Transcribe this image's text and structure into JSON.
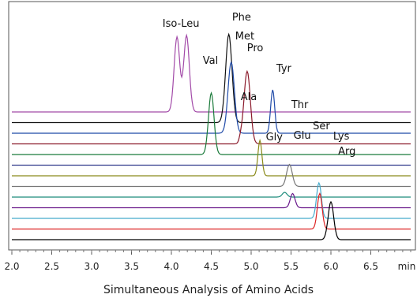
{
  "chart_data": {
    "type": "line",
    "title": "",
    "xlabel": "Simultaneous Analysis of Amino Acids",
    "x_unit": "min",
    "xlim": [
      2.0,
      7.0
    ],
    "x_ticks": [
      "2.0",
      "2.5",
      "3.0",
      "3.5",
      "4.0",
      "4.5",
      "5.0",
      "5.5",
      "6.0",
      "6.5"
    ],
    "ylabel": "",
    "grid": false,
    "legend": "none",
    "series": [
      {
        "color": "#a24aa8",
        "peaks": [
          {
            "label": "Iso-Leu",
            "rt": 4.07,
            "h": 0.95,
            "w": 0.035
          },
          {
            "rt": 4.19,
            "h": 0.97,
            "w": 0.035
          }
        ]
      },
      {
        "color": "#111111",
        "peaks": [
          {
            "label": "Phe",
            "rt": 4.72,
            "h": 1.12,
            "w": 0.04
          }
        ]
      },
      {
        "color": "#1f4aa8",
        "peaks": [
          {
            "label": "Met",
            "rt": 4.75,
            "h": 0.9,
            "w": 0.04
          },
          {
            "label": "Tyr",
            "rt": 5.27,
            "h": 0.55,
            "w": 0.025
          }
        ]
      },
      {
        "color": "#8b1a2b",
        "peaks": [
          {
            "label": "Pro",
            "rt": 4.95,
            "h": 0.92,
            "w": 0.04
          },
          {
            "label": "Ala",
            "rt": 4.87,
            "h": 0.06,
            "w": 0.02
          }
        ]
      },
      {
        "color": "#1a7a3a",
        "peaks": [
          {
            "label": "Val",
            "rt": 4.5,
            "h": 0.78,
            "w": 0.035
          }
        ]
      },
      {
        "color": "#303a8c",
        "peaks": []
      },
      {
        "color": "#8a8a1a",
        "peaks": [
          {
            "label": "Ala",
            "rt": 5.11,
            "h": 0.45,
            "w": 0.025
          }
        ]
      },
      {
        "color": "#777777",
        "peaks": [
          {
            "label": "Thr",
            "rt": 5.48,
            "h": 0.28,
            "w": 0.035
          }
        ]
      },
      {
        "color": "#1a8a7a",
        "peaks": [
          {
            "label": "Gly",
            "rt": 5.42,
            "h": 0.06,
            "w": 0.03
          }
        ]
      },
      {
        "color": "#6a1a8c",
        "peaks": [
          {
            "label": "Glu",
            "rt": 5.52,
            "h": 0.18,
            "w": 0.03
          }
        ]
      },
      {
        "color": "#44aacc",
        "peaks": [
          {
            "label": "Ser",
            "rt": 5.85,
            "h": 0.45,
            "w": 0.03
          }
        ]
      },
      {
        "color": "#dd2222",
        "peaks": [
          {
            "label": "Lys",
            "rt": 5.86,
            "h": 0.45,
            "w": 0.03
          }
        ]
      },
      {
        "color": "#000000",
        "peaks": [
          {
            "label": "Arg",
            "rt": 6.0,
            "h": 0.48,
            "w": 0.035
          }
        ]
      }
    ],
    "labels": [
      {
        "text": "Iso-Leu",
        "x": 4.12,
        "y": 1.08
      },
      {
        "text": "Phe",
        "x": 4.88,
        "y": 1.16
      },
      {
        "text": "Met",
        "x": 4.92,
        "y": 0.92
      },
      {
        "text": "Pro",
        "x": 5.05,
        "y": 0.77
      },
      {
        "text": "Val",
        "x": 4.49,
        "y": 0.61
      },
      {
        "text": "Tyr",
        "x": 5.41,
        "y": 0.51
      },
      {
        "text": "Ala",
        "x": 4.97,
        "y": 0.15
      },
      {
        "text": "Thr",
        "x": 5.61,
        "y": 0.05
      },
      {
        "text": "Gly",
        "x": 5.29,
        "y": -0.36
      },
      {
        "text": "Glu",
        "x": 5.64,
        "y": -0.34
      },
      {
        "text": "Ser",
        "x": 5.88,
        "y": -0.22
      },
      {
        "text": "Lys",
        "x": 6.13,
        "y": -0.35
      },
      {
        "text": "Arg",
        "x": 6.2,
        "y": -0.54
      }
    ]
  }
}
